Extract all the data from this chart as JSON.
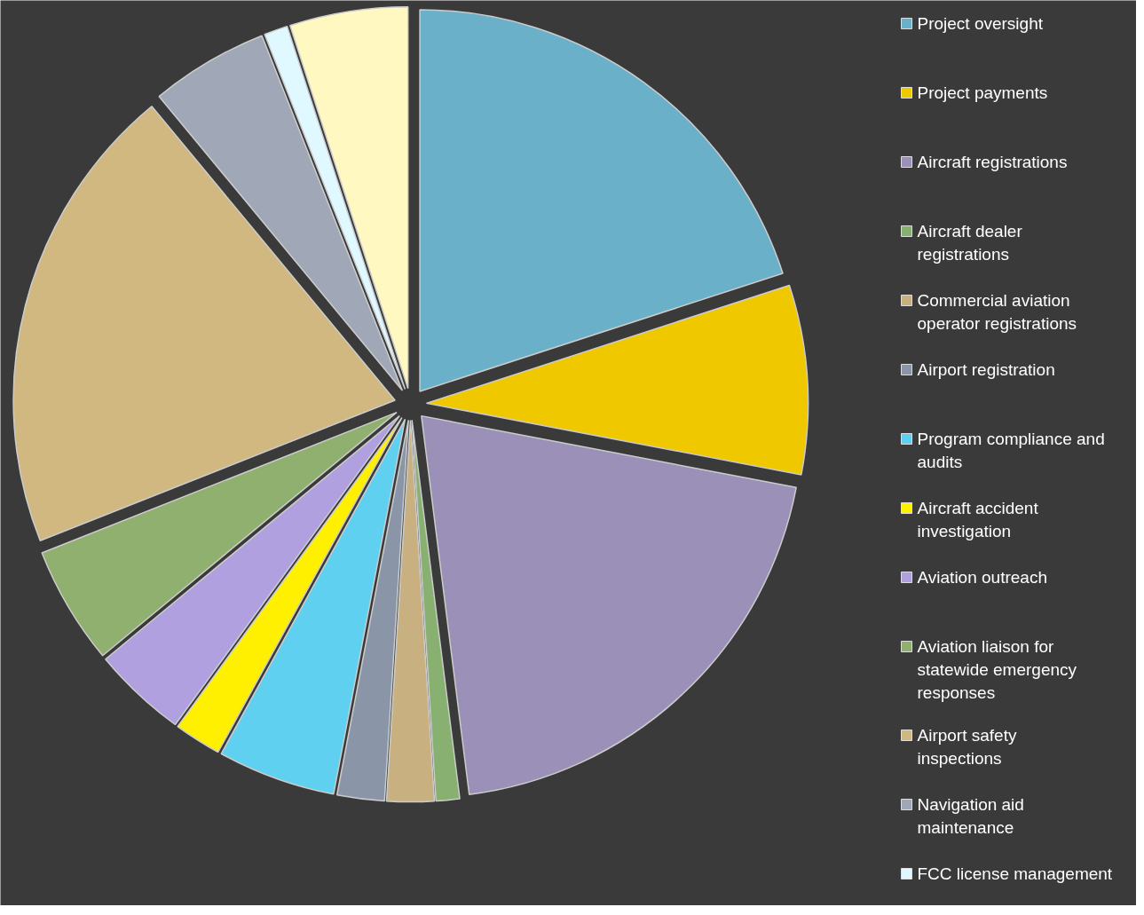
{
  "chart_data": {
    "type": "pie",
    "categories": [
      "Project oversight",
      "Project payments",
      "Aircraft registrations",
      "Aircraft dealer registrations",
      "Commercial aviation operator registrations",
      "Airport registration",
      "Program compliance and audits",
      "Aircraft accident investigation",
      "Aviation outreach",
      "Aviation liaison for statewide emergency responses",
      "Airport safety inspections",
      "Navigation aid maintenance",
      "FCC license management",
      null
    ],
    "values": [
      20,
      8,
      20,
      1,
      2,
      2,
      5,
      2,
      4,
      5,
      20,
      5,
      1,
      5
    ],
    "colors": [
      "#6ab0c8",
      "#f0c800",
      "#9a90b8",
      "#88b070",
      "#c8b080",
      "#8a96a8",
      "#60d0f0",
      "#fff000",
      "#b0a0e0",
      "#90b070",
      "#d0b880",
      "#a0a8b8",
      "#e0f8ff",
      "#fff8c0"
    ],
    "legend": "right"
  }
}
